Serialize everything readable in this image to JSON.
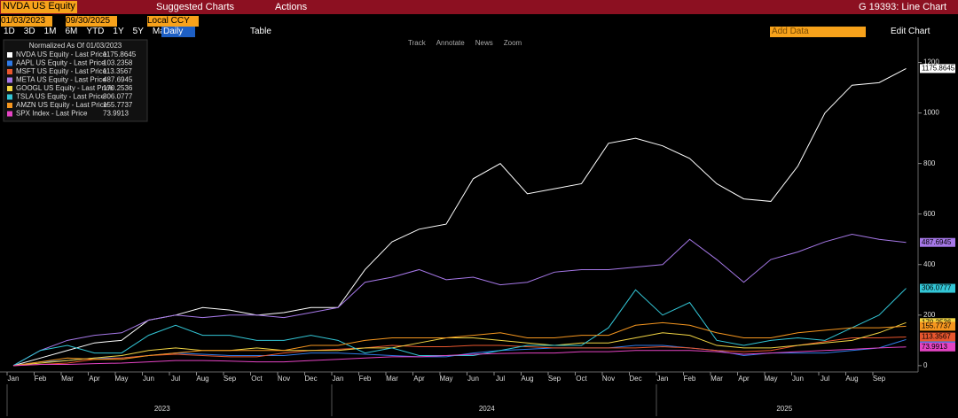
{
  "toolbar": {
    "ticker": "NVDA US Equity",
    "suggested": "Suggested Charts",
    "actions": "Actions",
    "function": "G 19393: Line Chart"
  },
  "controls": {
    "start_date": "01/03/2023",
    "end_date": "09/30/2025",
    "currency": "Local CCY",
    "ranges": [
      "1D",
      "3D",
      "1M",
      "6M",
      "YTD",
      "1Y",
      "5Y",
      "Max"
    ],
    "frequency": "Daily",
    "table": "Table",
    "add_data": "Add Data",
    "edit_chart": "Edit Chart"
  },
  "chart_tools": [
    "Track",
    "Annotate",
    "News",
    "Zoom"
  ],
  "chart_data": {
    "type": "line",
    "legend_title": "Normalized As Of 01/03/2023",
    "categories": [
      "Jan",
      "Feb",
      "Mar",
      "Apr",
      "May",
      "Jun",
      "Jul",
      "Aug",
      "Sep",
      "Oct",
      "Nov",
      "Dec",
      "Jan",
      "Feb",
      "Mar",
      "Apr",
      "May",
      "Jun",
      "Jul",
      "Aug",
      "Sep",
      "Oct",
      "Nov",
      "Dec",
      "Jan",
      "Feb",
      "Mar",
      "Apr",
      "May",
      "Jun",
      "Jul",
      "Aug",
      "Sep",
      null
    ],
    "years": [
      "2023",
      "2024",
      "2025"
    ],
    "ylim": [
      -25,
      1300
    ],
    "yticks": [
      0,
      200,
      400,
      600,
      800,
      1000,
      1200
    ],
    "grid": false,
    "series": [
      {
        "name": "NVDA US Equity - Last Price",
        "color": "#ffffff",
        "values": [
          0,
          30,
          60,
          90,
          100,
          180,
          200,
          230,
          220,
          200,
          210,
          230,
          230,
          380,
          490,
          540,
          560,
          740,
          800,
          680,
          700,
          720,
          880,
          900,
          870,
          820,
          720,
          660,
          650,
          790,
          1000,
          1110,
          1120,
          1175.8645
        ]
      },
      {
        "name": "AAPL US Equity - Last Price",
        "color": "#2f7be8",
        "values": [
          0,
          15,
          20,
          30,
          30,
          40,
          50,
          45,
          40,
          40,
          40,
          50,
          50,
          45,
          40,
          35,
          35,
          50,
          60,
          65,
          70,
          70,
          70,
          80,
          80,
          70,
          60,
          40,
          50,
          50,
          50,
          60,
          70,
          103.2358
        ]
      },
      {
        "name": "MSFT US Equity - Last Price",
        "color": "#e8562e",
        "values": [
          0,
          5,
          10,
          25,
          30,
          40,
          45,
          40,
          35,
          35,
          50,
          60,
          65,
          70,
          80,
          75,
          75,
          80,
          80,
          75,
          70,
          70,
          70,
          70,
          75,
          70,
          60,
          55,
          60,
          80,
          95,
          110,
          110,
          113.3567
        ]
      },
      {
        "name": "META US Equity - Last Price",
        "color": "#a678e8",
        "values": [
          0,
          60,
          100,
          120,
          130,
          180,
          200,
          190,
          200,
          200,
          190,
          210,
          230,
          330,
          350,
          380,
          340,
          350,
          320,
          330,
          370,
          380,
          380,
          390,
          400,
          500,
          420,
          330,
          420,
          450,
          490,
          520,
          500,
          487.6945
        ]
      },
      {
        "name": "GOOGL US Equity - Last Price",
        "color": "#f2d544",
        "values": [
          0,
          10,
          20,
          30,
          40,
          60,
          70,
          60,
          60,
          70,
          60,
          60,
          60,
          70,
          70,
          90,
          110,
          110,
          100,
          90,
          80,
          90,
          90,
          110,
          130,
          120,
          80,
          70,
          70,
          80,
          90,
          100,
          130,
          170.2536
        ]
      },
      {
        "name": "TSLA US Equity - Last Price",
        "color": "#33c6d6",
        "values": [
          0,
          60,
          80,
          50,
          50,
          120,
          160,
          120,
          120,
          100,
          100,
          120,
          100,
          50,
          70,
          40,
          40,
          40,
          60,
          80,
          80,
          80,
          150,
          300,
          200,
          250,
          100,
          80,
          100,
          110,
          100,
          150,
          200,
          306.0777
        ]
      },
      {
        "name": "AMZN US Equity - Last Price",
        "color": "#f5961f",
        "values": [
          0,
          15,
          30,
          25,
          25,
          40,
          50,
          60,
          60,
          60,
          60,
          80,
          80,
          100,
          110,
          110,
          110,
          120,
          130,
          110,
          110,
          120,
          120,
          160,
          170,
          160,
          130,
          110,
          110,
          130,
          140,
          150,
          150,
          155.7737
        ]
      },
      {
        "name": "SPX Index - Last Price",
        "color": "#e544c4",
        "values": [
          0,
          5,
          5,
          8,
          10,
          15,
          20,
          20,
          18,
          15,
          15,
          20,
          25,
          30,
          35,
          35,
          40,
          45,
          48,
          50,
          50,
          55,
          55,
          60,
          60,
          60,
          55,
          45,
          50,
          55,
          60,
          65,
          70,
          73.9913
        ]
      }
    ]
  }
}
